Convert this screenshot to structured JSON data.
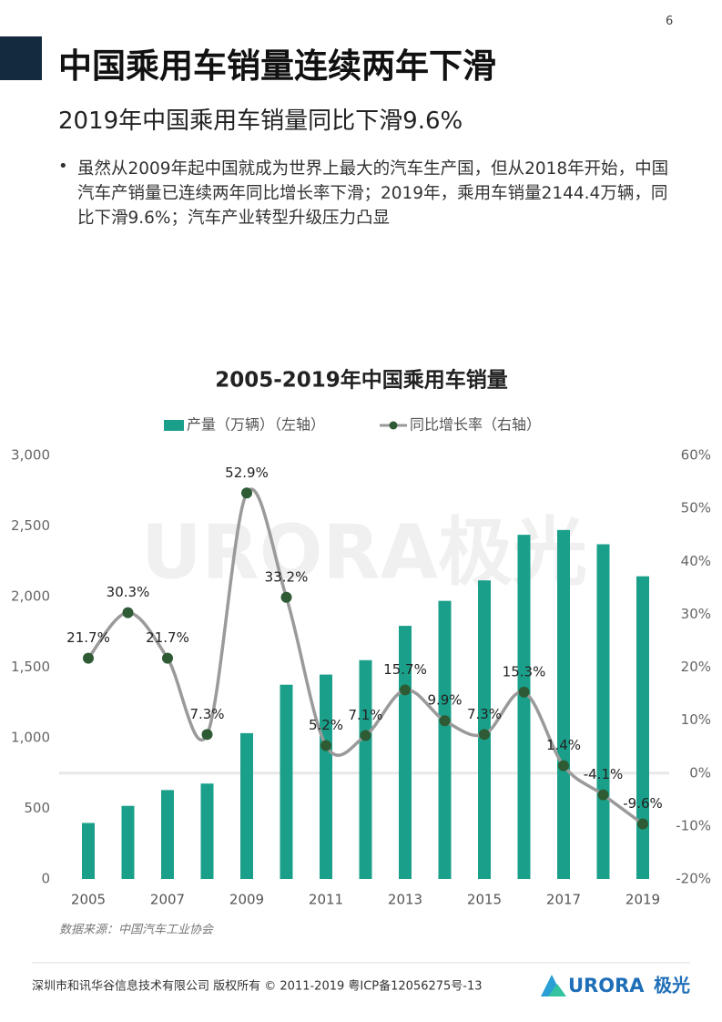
{
  "page_number": "6",
  "title": "中国乘用车销量连续两年下滑",
  "subtitle": "2019年中国乘用车销量同比下滑9.6%",
  "bullet": "虽然从2009年起中国就成为世界上最大的汽车生产国，但从2018年开始，中国汽车产销量已连续两年同比增长率下滑；2019年，乘用车销量2144.4万辆，同比下滑9.6%；汽车产业转型升级压力凸显",
  "watermark": "URORA极光",
  "chart_data": {
    "type": "bar",
    "title": "2005-2019年中国乘用车销量",
    "categories": [
      "2005",
      null,
      "2007",
      null,
      "2009",
      null,
      "2011",
      null,
      "2013",
      null,
      "2015",
      null,
      "2017",
      null,
      "2019"
    ],
    "series": [
      {
        "name": "产量（万辆）（左轴）",
        "type": "bar",
        "color": "#1aa08a",
        "values": [
          397,
          518,
          630,
          676,
          1033,
          1376,
          1448,
          1550,
          1793,
          1970,
          2115,
          2438,
          2472,
          2371,
          2144
        ]
      },
      {
        "name": "同比增长率（右轴）",
        "type": "line",
        "axis": "y2",
        "color": "#9a9a9a",
        "marker_color": "#2e5a34",
        "values": [
          21.7,
          30.3,
          21.7,
          7.3,
          52.9,
          33.2,
          5.2,
          7.1,
          15.7,
          9.9,
          7.3,
          15.3,
          1.4,
          -4.1,
          -9.6
        ],
        "value_labels": [
          "21.7%",
          "30.3%",
          "21.7%",
          "7.3%",
          "52.9%",
          "33.2%",
          "5.2%",
          "7.1%",
          "15.7%",
          "9.9%",
          "7.3%",
          "15.3%",
          "1.4%",
          "-4.1%",
          "-9.6%"
        ]
      }
    ],
    "ylim": [
      0,
      3000
    ],
    "yticks": [
      0,
      500,
      {
        "value": 1000,
        "label": "1,000"
      },
      {
        "value": 1500,
        "label": "1,500"
      },
      {
        "value": 2000,
        "label": "2,000"
      },
      {
        "value": 2500,
        "label": "2,500"
      },
      {
        "value": 3000,
        "label": "3,000"
      }
    ],
    "y2lim": [
      -20,
      60
    ],
    "y2ticks": [
      {
        "value": -20,
        "label": "-20%"
      },
      {
        "value": -10,
        "label": "-10%"
      },
      {
        "value": 0,
        "label": "0%"
      },
      {
        "value": 10,
        "label": "10%"
      },
      {
        "value": 20,
        "label": "20%"
      },
      {
        "value": 30,
        "label": "30%"
      },
      {
        "value": 40,
        "label": "40%"
      },
      {
        "value": 50,
        "label": "50%"
      },
      {
        "value": 60,
        "label": "60%"
      }
    ],
    "legend": "top",
    "source": "数据来源：中国汽车工业协会"
  },
  "footer": "深圳市和讯华谷信息技术有限公司 版权所有 © 2011-2019 粤ICP备12056275号-13",
  "logo": {
    "brand": "URORA",
    "name": "极光"
  }
}
